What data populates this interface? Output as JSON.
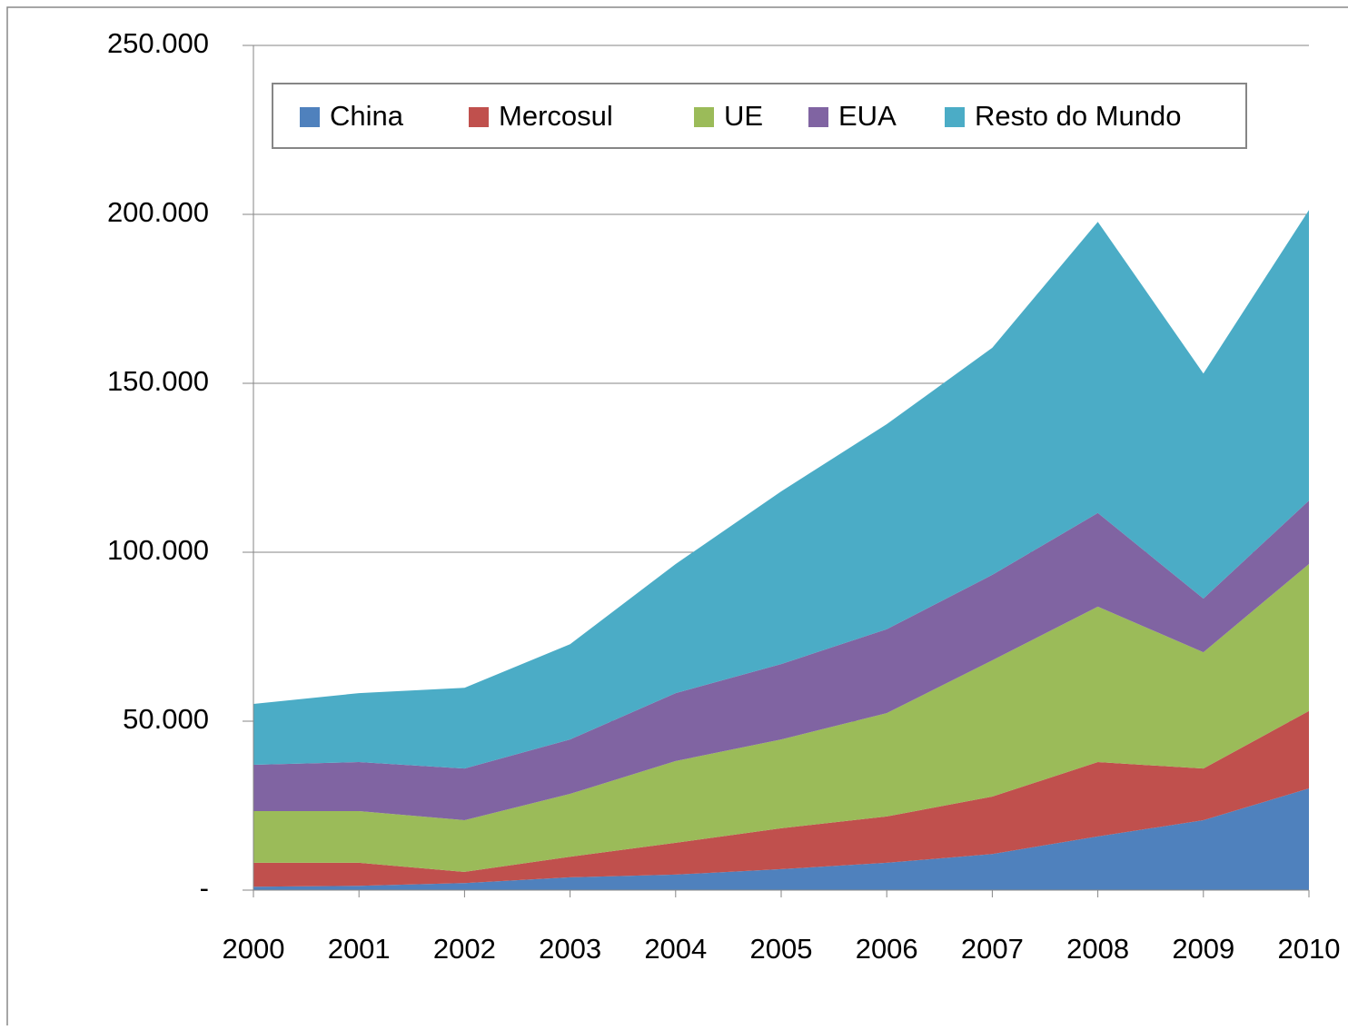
{
  "chart_data": {
    "type": "stacked-area",
    "categories": [
      "2000",
      "2001",
      "2002",
      "2003",
      "2004",
      "2005",
      "2006",
      "2007",
      "2008",
      "2009",
      "2010"
    ],
    "series": [
      {
        "name": "China",
        "color": "#4f81bd",
        "values": [
          1000,
          1300,
          2100,
          3800,
          4600,
          6200,
          8100,
          10700,
          15900,
          20700,
          30100
        ]
      },
      {
        "name": "Mercosul",
        "color": "#c0504d",
        "values": [
          7100,
          6800,
          3300,
          6100,
          9400,
          12100,
          13700,
          17000,
          22000,
          15300,
          22900
        ]
      },
      {
        "name": "UE",
        "color": "#9bbb59",
        "values": [
          15300,
          15300,
          15300,
          18600,
          24200,
          26300,
          30600,
          40300,
          46000,
          34400,
          43500
        ]
      },
      {
        "name": "EUA",
        "color": "#8064a2",
        "values": [
          13700,
          14500,
          15300,
          16100,
          20100,
          22300,
          24800,
          25300,
          27700,
          15900,
          18800
        ]
      },
      {
        "name": "Resto do Mundo",
        "color": "#4bacc6",
        "values": [
          18000,
          20400,
          23900,
          28200,
          38200,
          51100,
          60700,
          67200,
          86200,
          66600,
          86000
        ]
      }
    ],
    "ylim": [
      0,
      250000
    ],
    "yticks": [
      {
        "value": 0,
        "label": "-"
      },
      {
        "value": 50000,
        "label": "50.000"
      },
      {
        "value": 100000,
        "label": "100.000"
      },
      {
        "value": 150000,
        "label": "150.000"
      },
      {
        "value": 200000,
        "label": "200.000"
      },
      {
        "value": 250000,
        "label": "250.000"
      }
    ],
    "grid": true,
    "legend": "top"
  }
}
